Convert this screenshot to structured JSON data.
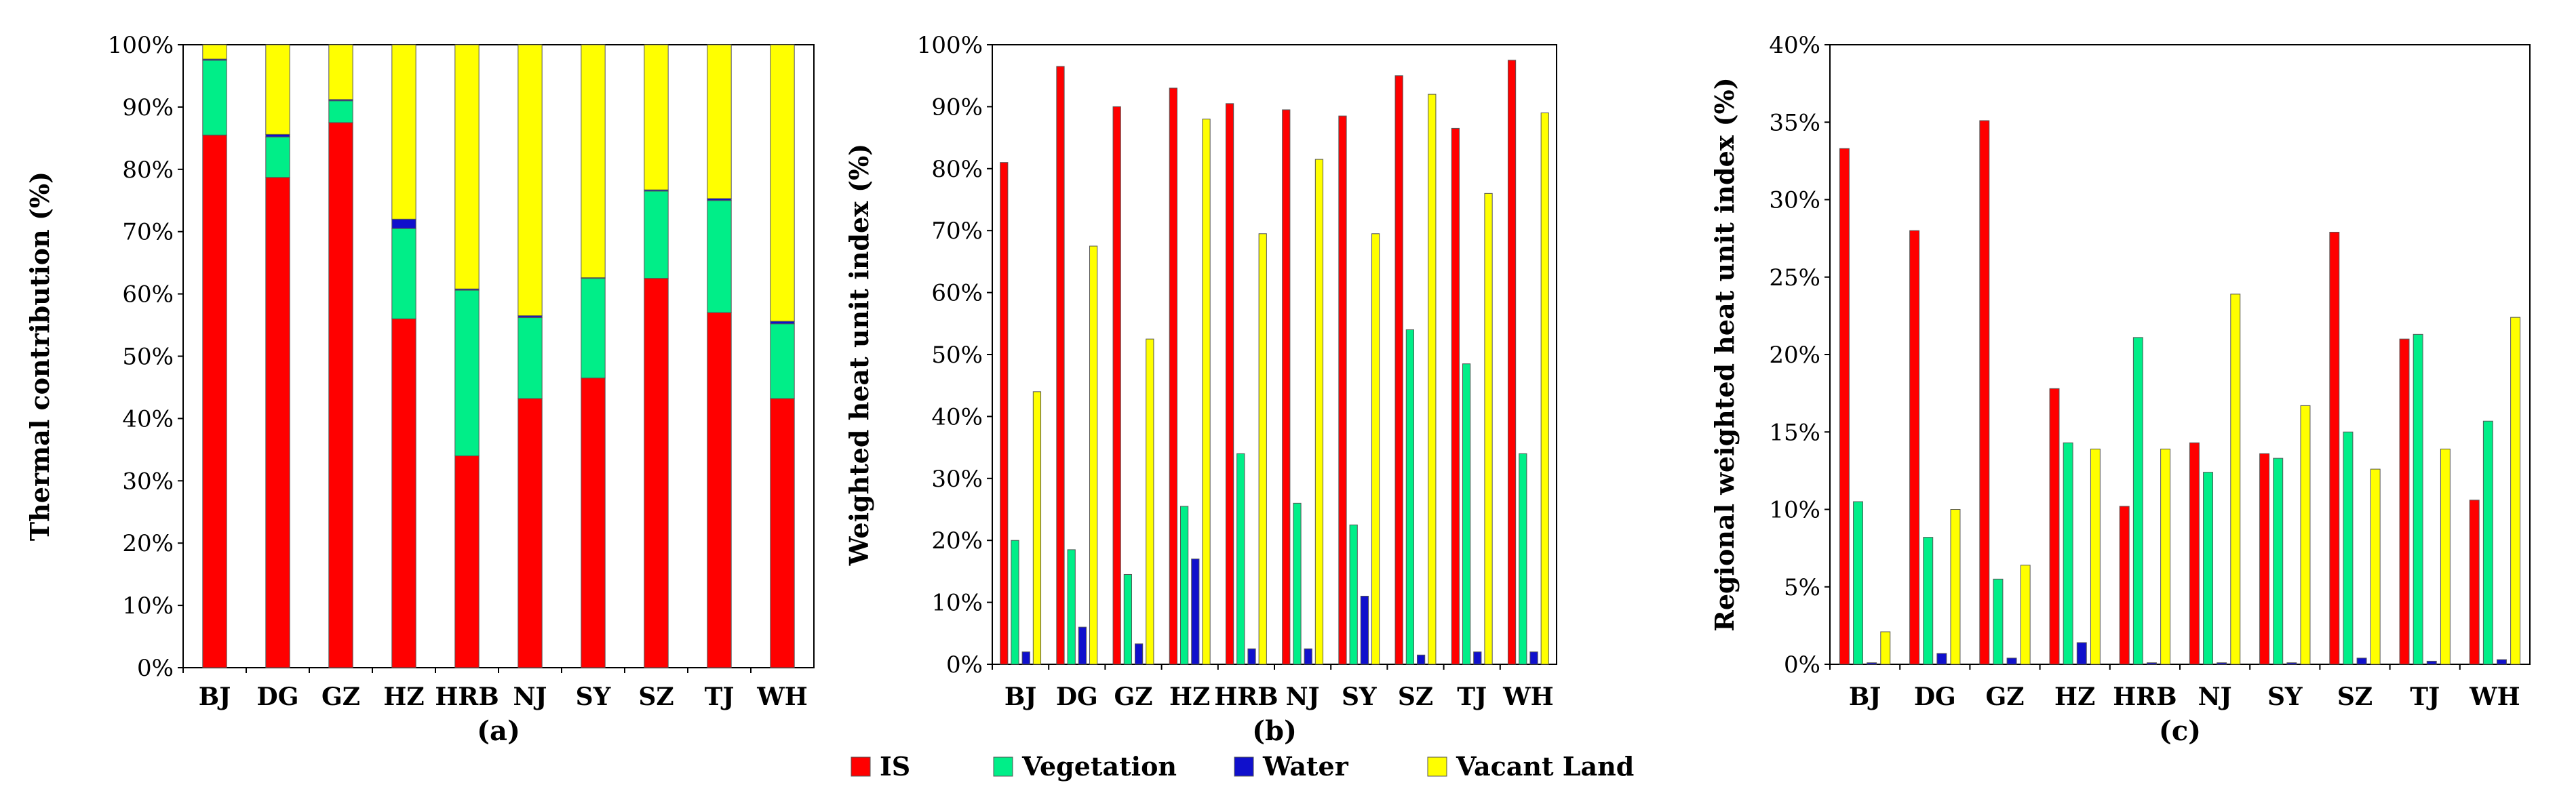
{
  "colors": {
    "IS": "#ff0000",
    "Vegetation": "#00ee88",
    "Water": "#1010cc",
    "Vacant Land": "#ffff00"
  },
  "legend": [
    "IS",
    "Vegetation",
    "Water",
    "Vacant Land"
  ],
  "chart_data": [
    {
      "id": "a",
      "type": "bar",
      "stacked": true,
      "panel_label": "(a)",
      "ylabel": "Thermal contribution (%)",
      "ylim": [
        0,
        100
      ],
      "yticks": [
        0,
        10,
        20,
        30,
        40,
        50,
        60,
        70,
        80,
        90,
        100
      ],
      "ytick_labels": [
        "0%",
        "10%",
        "20%",
        "30%",
        "40%",
        "50%",
        "60%",
        "70%",
        "80%",
        "90%",
        "100%"
      ],
      "categories": [
        "BJ",
        "DG",
        "GZ",
        "HZ",
        "HRB",
        "NJ",
        "SY",
        "SZ",
        "TJ",
        "WH"
      ],
      "series": [
        {
          "name": "IS",
          "values": [
            85.5,
            78.7,
            87.5,
            56,
            34,
            43.2,
            46.5,
            62.5,
            57,
            43.2
          ]
        },
        {
          "name": "Vegetation",
          "values": [
            12,
            6.5,
            3.5,
            14.5,
            26.6,
            13,
            16,
            14,
            18,
            12
          ]
        },
        {
          "name": "Water",
          "values": [
            0.2,
            0.4,
            0.2,
            1.5,
            0.2,
            0.3,
            0.1,
            0.2,
            0.3,
            0.4
          ]
        },
        {
          "name": "Vacant Land",
          "values": [
            2.3,
            14.4,
            8.8,
            28,
            39.2,
            43.5,
            37.4,
            23.3,
            24.7,
            44.4
          ]
        }
      ]
    },
    {
      "id": "b",
      "type": "bar",
      "stacked": false,
      "panel_label": "(b)",
      "ylabel": "Weighted heat unit index (%)",
      "ylim": [
        0,
        100
      ],
      "yticks": [
        0,
        10,
        20,
        30,
        40,
        50,
        60,
        70,
        80,
        90,
        100
      ],
      "ytick_labels": [
        "0%",
        "10%",
        "20%",
        "30%",
        "40%",
        "50%",
        "60%",
        "70%",
        "80%",
        "90%",
        "100%"
      ],
      "categories": [
        "BJ",
        "DG",
        "GZ",
        "HZ",
        "HRB",
        "NJ",
        "SY",
        "SZ",
        "TJ",
        "WH"
      ],
      "series": [
        {
          "name": "IS",
          "values": [
            81,
            96.5,
            90,
            93,
            90.5,
            89.5,
            88.5,
            95,
            86.5,
            97.5
          ]
        },
        {
          "name": "Vegetation",
          "values": [
            20,
            18.5,
            14.5,
            25.5,
            34,
            26,
            22.5,
            54,
            48.5,
            34
          ]
        },
        {
          "name": "Water",
          "values": [
            2,
            6,
            3.3,
            17,
            2.5,
            2.5,
            11,
            1.5,
            2,
            2
          ]
        },
        {
          "name": "Vacant Land",
          "values": [
            44,
            67.5,
            52.5,
            88,
            69.5,
            81.5,
            69.5,
            92,
            76,
            89
          ]
        }
      ]
    },
    {
      "id": "c",
      "type": "bar",
      "stacked": false,
      "panel_label": "(c)",
      "ylabel": "Regional weighted heat unit index (%)",
      "ylim": [
        0,
        40
      ],
      "yticks": [
        0,
        5,
        10,
        15,
        20,
        25,
        30,
        35,
        40
      ],
      "ytick_labels": [
        "0%",
        "5%",
        "10%",
        "15%",
        "20%",
        "25%",
        "30%",
        "35%",
        "40%"
      ],
      "categories": [
        "BJ",
        "DG",
        "GZ",
        "HZ",
        "HRB",
        "NJ",
        "SY",
        "SZ",
        "TJ",
        "WH"
      ],
      "series": [
        {
          "name": "IS",
          "values": [
            33.3,
            28,
            35.1,
            17.8,
            10.2,
            14.3,
            13.6,
            27.9,
            21,
            10.6
          ]
        },
        {
          "name": "Vegetation",
          "values": [
            10.5,
            8.2,
            5.5,
            14.3,
            21.1,
            12.4,
            13.3,
            15,
            21.3,
            15.7
          ]
        },
        {
          "name": "Water",
          "values": [
            0.1,
            0.7,
            0.4,
            1.4,
            0.1,
            0.1,
            0.1,
            0.4,
            0.2,
            0.3
          ]
        },
        {
          "name": "Vacant Land",
          "values": [
            2.1,
            10,
            6.4,
            13.9,
            13.9,
            23.9,
            16.7,
            12.6,
            13.9,
            22.4
          ]
        }
      ]
    }
  ]
}
